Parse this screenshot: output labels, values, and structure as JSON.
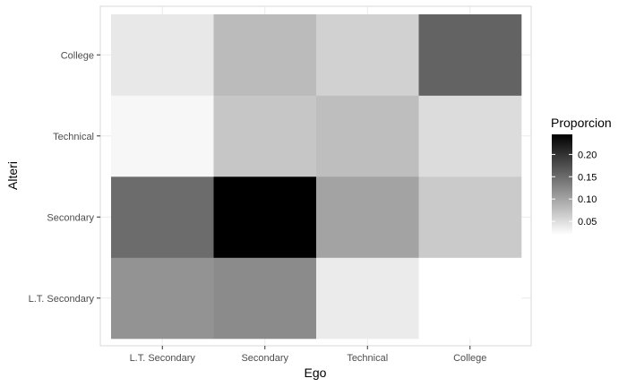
{
  "chart_data": {
    "type": "heatmap",
    "title": "",
    "xlabel": "Ego",
    "ylabel": "Alteri",
    "x_categories": [
      "L.T. Secondary",
      "Secondary",
      "Technical",
      "College"
    ],
    "y_categories": [
      "L.T. Secondary",
      "Secondary",
      "Technical",
      "College"
    ],
    "values": [
      [
        0.115,
        0.122,
        0.038,
        0.02
      ],
      [
        0.15,
        0.245,
        0.101,
        0.067
      ],
      [
        0.027,
        0.07,
        0.077,
        0.051
      ],
      [
        0.04,
        0.08,
        0.061,
        0.158
      ]
    ],
    "value_note": "values[row][col]: row = Alteri category index (bottom to top), col = Ego category index",
    "color_scale": {
      "low_color": "#ffffff",
      "high_color": "#000000",
      "domain": [
        0.02,
        0.245
      ]
    },
    "legend": {
      "title": "Proporcion",
      "ticks": [
        0.05,
        0.1,
        0.15,
        0.2
      ],
      "tick_labels": [
        "0.05",
        "0.10",
        "0.15",
        "0.20"
      ],
      "placement": "right"
    },
    "grid": true
  }
}
